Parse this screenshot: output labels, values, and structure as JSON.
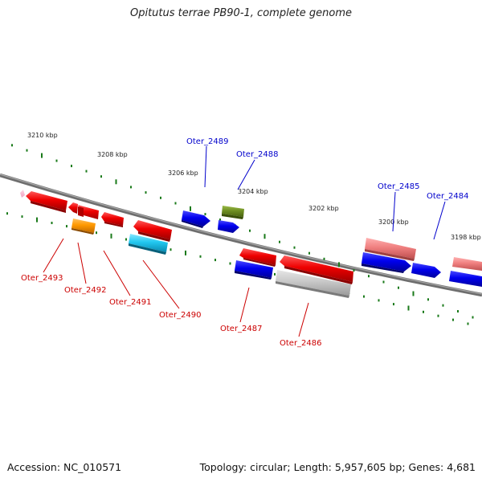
{
  "title": "Opitutus terrae PB90-1, complete genome",
  "footer": {
    "accession": "Accession: NC_010571",
    "summary": "Topology: circular; Length: 5,957,605 bp; Genes: 4,681"
  },
  "colors": {
    "backbone": "#7a7a7a",
    "tick": "#1a7a1a",
    "label_top": "#0000cc",
    "label_bottom": "#cc0000",
    "kbp_text": "#222222"
  },
  "kbp_ticks": [
    {
      "label": "3210 kbp"
    },
    {
      "label": "3208 kbp"
    },
    {
      "label": "3206 kbp"
    },
    {
      "label": "3204 kbp"
    },
    {
      "label": "3202 kbp"
    },
    {
      "label": "3200 kbp"
    },
    {
      "label": "3198 kbp"
    }
  ],
  "gene_labels_top": [
    {
      "name": "Oter_2489"
    },
    {
      "name": "Oter_2488"
    },
    {
      "name": "Oter_2485"
    },
    {
      "name": "Oter_2484"
    }
  ],
  "gene_labels_bottom": [
    {
      "name": "Oter_2493"
    },
    {
      "name": "Oter_2492"
    },
    {
      "name": "Oter_2491"
    },
    {
      "name": "Oter_2490"
    },
    {
      "name": "Oter_2487"
    },
    {
      "name": "Oter_2486"
    }
  ]
}
